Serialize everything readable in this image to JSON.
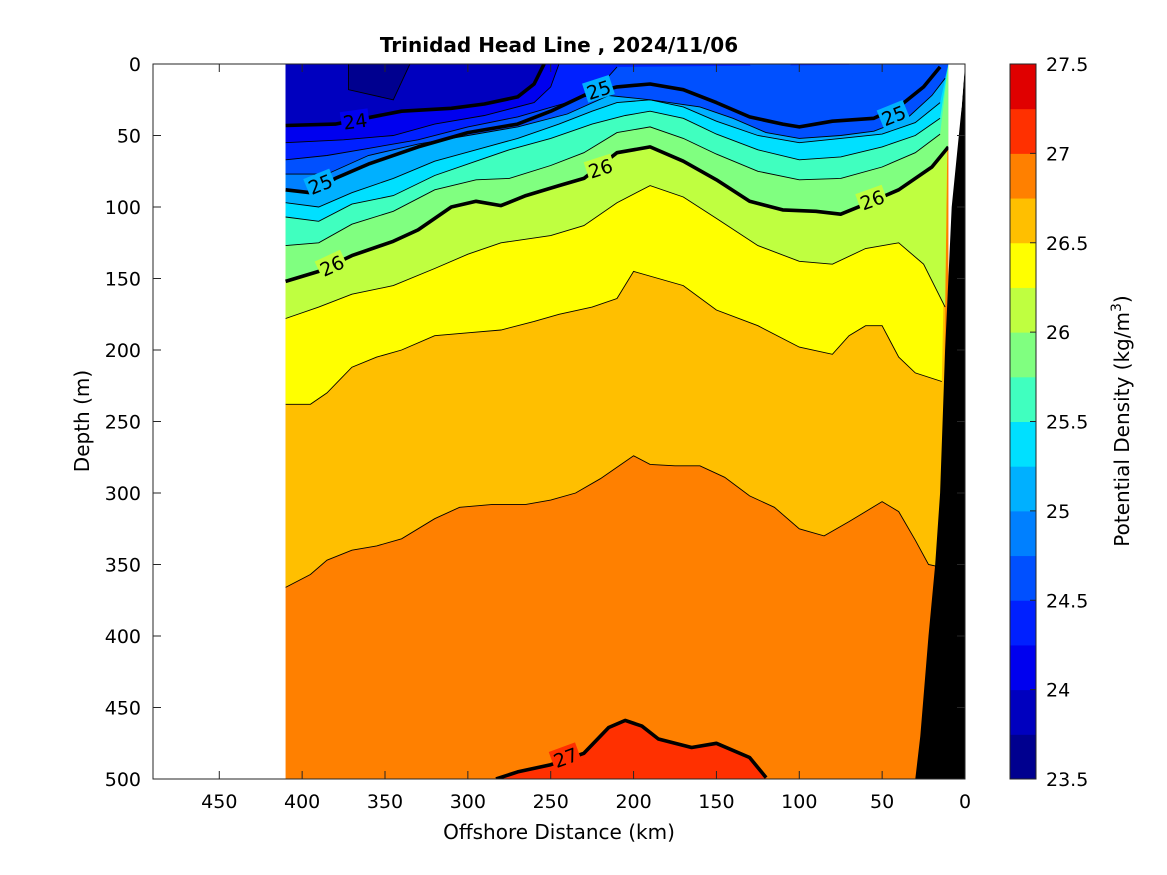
{
  "chart_data": {
    "type": "contour",
    "title": "Trinidad Head Line , 2024/11/06",
    "xlabel": "Offshore Distance (km)",
    "ylabel": "Depth (m)",
    "colorbar_label": "Potential Density (kg/m",
    "colorbar_label_sup": "3",
    "colorbar_label_close": ")",
    "xlim": [
      490,
      0
    ],
    "ylim": [
      0,
      500
    ],
    "x_reversed": true,
    "y_reversed": true,
    "x_ticks": [
      450,
      400,
      350,
      300,
      250,
      200,
      150,
      100,
      50,
      0
    ],
    "y_ticks": [
      0,
      50,
      100,
      150,
      200,
      250,
      300,
      350,
      400,
      450,
      500
    ],
    "color_ticks": [
      "23.5",
      "24",
      "24.5",
      "25",
      "25.5",
      "26",
      "26.5",
      "27",
      "27.5"
    ],
    "clim": [
      23.5,
      27.5
    ],
    "levels": [
      23.5,
      23.75,
      24,
      24.25,
      24.5,
      24.75,
      25,
      25.25,
      25.5,
      25.75,
      26,
      26.25,
      26.5,
      26.75,
      27,
      27.25,
      27.5
    ],
    "colormap": [
      "#00008f",
      "#0000bf",
      "#0000ef",
      "#0020ff",
      "#0050ff",
      "#0080ff",
      "#00b0ff",
      "#00e0ff",
      "#40ffbf",
      "#80ff80",
      "#bfff40",
      "#ffff00",
      "#ffbf00",
      "#ff8000",
      "#ff3000",
      "#e00000",
      "#b00000"
    ],
    "data_extent_km": [
      410,
      10
    ],
    "bottom_fill": "#000000",
    "isopycnals": [
      {
        "level": 24,
        "label": "24",
        "bold": true,
        "points": [
          [
            410,
            43
          ],
          [
            380,
            42
          ],
          [
            340,
            33
          ],
          [
            310,
            31
          ],
          [
            290,
            28
          ],
          [
            270,
            23
          ],
          [
            260,
            14
          ],
          [
            254,
            0
          ]
        ]
      },
      {
        "level": 25,
        "label": "25",
        "bold": true,
        "points": [
          [
            410,
            88
          ],
          [
            395,
            90
          ],
          [
            380,
            80
          ],
          [
            360,
            70
          ],
          [
            330,
            58
          ],
          [
            300,
            48
          ],
          [
            270,
            42
          ],
          [
            250,
            33
          ],
          [
            230,
            22
          ],
          [
            210,
            16
          ],
          [
            190,
            14
          ],
          [
            170,
            18
          ],
          [
            150,
            27
          ],
          [
            130,
            37
          ],
          [
            110,
            42
          ],
          [
            100,
            44
          ],
          [
            80,
            40
          ],
          [
            55,
            38
          ],
          [
            40,
            30
          ],
          [
            25,
            16
          ],
          [
            15,
            2
          ]
        ]
      },
      {
        "level": 26,
        "label": "26",
        "bold": true,
        "points": [
          [
            410,
            152
          ],
          [
            390,
            145
          ],
          [
            370,
            134
          ],
          [
            345,
            124
          ],
          [
            330,
            116
          ],
          [
            310,
            100
          ],
          [
            295,
            96
          ],
          [
            280,
            99
          ],
          [
            265,
            92
          ],
          [
            245,
            85
          ],
          [
            230,
            80
          ],
          [
            210,
            62
          ],
          [
            190,
            58
          ],
          [
            170,
            68
          ],
          [
            150,
            81
          ],
          [
            130,
            96
          ],
          [
            110,
            102
          ],
          [
            90,
            103
          ],
          [
            75,
            105
          ],
          [
            60,
            98
          ],
          [
            40,
            88
          ],
          [
            20,
            72
          ],
          [
            10,
            58
          ]
        ]
      },
      {
        "level": 27,
        "label": "27",
        "bold": true,
        "points": [
          [
            283,
            500
          ],
          [
            270,
            495
          ],
          [
            250,
            490
          ],
          [
            230,
            482
          ],
          [
            215,
            464
          ],
          [
            205,
            459
          ],
          [
            195,
            463
          ],
          [
            185,
            472
          ],
          [
            165,
            478
          ],
          [
            150,
            475
          ],
          [
            130,
            485
          ],
          [
            120,
            499
          ]
        ]
      }
    ],
    "thin_contours": [
      {
        "level": 23.75,
        "points": [
          [
            372,
            0
          ],
          [
            372,
            18
          ],
          [
            345,
            25
          ],
          [
            335,
            0
          ]
        ]
      },
      {
        "level": 24.25,
        "points": [
          [
            410,
            55
          ],
          [
            375,
            53
          ],
          [
            345,
            50
          ],
          [
            320,
            42
          ],
          [
            290,
            36
          ],
          [
            260,
            27
          ],
          [
            250,
            16
          ],
          [
            245,
            0
          ]
        ]
      },
      {
        "level": 24.5,
        "points": [
          [
            410,
            67
          ],
          [
            385,
            64
          ],
          [
            360,
            59
          ],
          [
            330,
            53
          ],
          [
            300,
            44
          ],
          [
            270,
            37
          ],
          [
            240,
            27
          ],
          [
            220,
            15
          ],
          [
            210,
            2
          ]
        ]
      },
      {
        "level": 24.75,
        "points": [
          [
            410,
            77
          ],
          [
            385,
            77
          ],
          [
            360,
            64
          ],
          [
            330,
            56
          ],
          [
            300,
            50
          ],
          [
            270,
            44
          ],
          [
            240,
            35
          ],
          [
            215,
            22
          ],
          [
            190,
            25
          ],
          [
            160,
            30
          ],
          [
            140,
            38
          ],
          [
            120,
            48
          ],
          [
            100,
            52
          ],
          [
            75,
            50
          ],
          [
            55,
            47
          ],
          [
            35,
            38
          ],
          [
            20,
            22
          ],
          [
            12,
            10
          ]
        ]
      },
      {
        "level": 25.25,
        "points": [
          [
            410,
            97
          ],
          [
            390,
            100
          ],
          [
            370,
            90
          ],
          [
            345,
            80
          ],
          [
            320,
            68
          ],
          [
            295,
            60
          ],
          [
            270,
            52
          ],
          [
            245,
            42
          ],
          [
            225,
            33
          ],
          [
            210,
            27
          ],
          [
            190,
            25
          ],
          [
            170,
            30
          ],
          [
            150,
            40
          ],
          [
            125,
            50
          ],
          [
            100,
            55
          ],
          [
            75,
            52
          ],
          [
            50,
            49
          ],
          [
            30,
            41
          ],
          [
            15,
            27
          ]
        ]
      },
      {
        "level": 25.5,
        "points": [
          [
            410,
            107
          ],
          [
            390,
            110
          ],
          [
            370,
            98
          ],
          [
            345,
            92
          ],
          [
            320,
            78
          ],
          [
            295,
            68
          ],
          [
            275,
            60
          ],
          [
            250,
            52
          ],
          [
            225,
            42
          ],
          [
            205,
            36
          ],
          [
            190,
            33
          ],
          [
            170,
            38
          ],
          [
            150,
            49
          ],
          [
            125,
            60
          ],
          [
            100,
            67
          ],
          [
            75,
            65
          ],
          [
            50,
            58
          ],
          [
            30,
            50
          ],
          [
            15,
            38
          ]
        ]
      },
      {
        "level": 25.75,
        "points": [
          [
            410,
            127
          ],
          [
            390,
            125
          ],
          [
            370,
            112
          ],
          [
            345,
            103
          ],
          [
            320,
            88
          ],
          [
            295,
            81
          ],
          [
            275,
            80
          ],
          [
            250,
            71
          ],
          [
            230,
            62
          ],
          [
            210,
            48
          ],
          [
            190,
            44
          ],
          [
            170,
            52
          ],
          [
            150,
            63
          ],
          [
            125,
            75
          ],
          [
            100,
            81
          ],
          [
            75,
            80
          ],
          [
            50,
            72
          ],
          [
            30,
            62
          ],
          [
            15,
            49
          ]
        ]
      },
      {
        "level": 26.25,
        "points": [
          [
            410,
            178
          ],
          [
            390,
            170
          ],
          [
            370,
            161
          ],
          [
            345,
            155
          ],
          [
            320,
            143
          ],
          [
            300,
            133
          ],
          [
            280,
            125
          ],
          [
            250,
            120
          ],
          [
            230,
            113
          ],
          [
            210,
            97
          ],
          [
            190,
            85
          ],
          [
            170,
            93
          ],
          [
            150,
            108
          ],
          [
            125,
            127
          ],
          [
            100,
            138
          ],
          [
            80,
            140
          ],
          [
            60,
            129
          ],
          [
            40,
            125
          ],
          [
            25,
            140
          ],
          [
            12,
            170
          ]
        ]
      },
      {
        "level": 26.5,
        "points": [
          [
            410,
            238
          ],
          [
            395,
            238
          ],
          [
            385,
            230
          ],
          [
            370,
            212
          ],
          [
            355,
            205
          ],
          [
            340,
            200
          ],
          [
            320,
            190
          ],
          [
            300,
            188
          ],
          [
            280,
            186
          ],
          [
            260,
            180
          ],
          [
            245,
            175
          ],
          [
            225,
            170
          ],
          [
            210,
            164
          ],
          [
            200,
            145
          ],
          [
            185,
            150
          ],
          [
            170,
            155
          ],
          [
            150,
            172
          ],
          [
            125,
            183
          ],
          [
            100,
            198
          ],
          [
            80,
            203
          ],
          [
            70,
            190
          ],
          [
            60,
            183
          ],
          [
            50,
            183
          ],
          [
            40,
            205
          ],
          [
            30,
            216
          ],
          [
            14,
            222
          ]
        ]
      },
      {
        "level": 26.75,
        "points": [
          [
            410,
            366
          ],
          [
            395,
            357
          ],
          [
            385,
            347
          ],
          [
            370,
            340
          ],
          [
            355,
            337
          ],
          [
            340,
            332
          ],
          [
            320,
            318
          ],
          [
            305,
            310
          ],
          [
            285,
            308
          ],
          [
            265,
            308
          ],
          [
            250,
            305
          ],
          [
            235,
            300
          ],
          [
            220,
            290
          ],
          [
            210,
            282
          ],
          [
            200,
            274
          ],
          [
            190,
            280
          ],
          [
            175,
            281
          ],
          [
            160,
            281
          ],
          [
            145,
            289
          ],
          [
            130,
            302
          ],
          [
            115,
            310
          ],
          [
            100,
            325
          ],
          [
            85,
            330
          ],
          [
            70,
            320
          ],
          [
            60,
            313
          ],
          [
            50,
            306
          ],
          [
            40,
            313
          ],
          [
            30,
            333
          ],
          [
            22,
            350
          ],
          [
            14,
            352
          ]
        ]
      }
    ]
  }
}
